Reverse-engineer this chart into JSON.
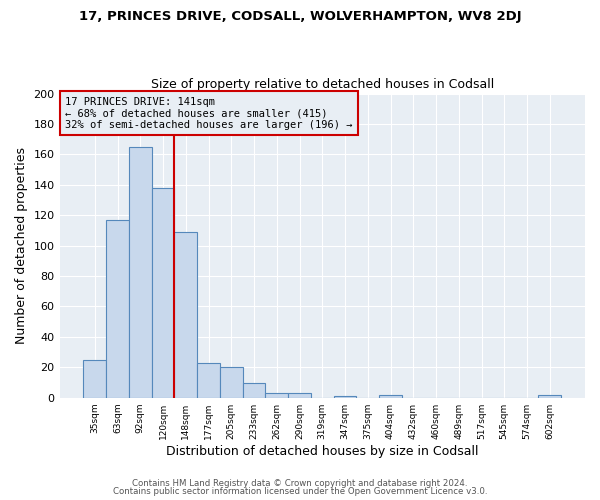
{
  "title1": "17, PRINCES DRIVE, CODSALL, WOLVERHAMPTON, WV8 2DJ",
  "title2": "Size of property relative to detached houses in Codsall",
  "xlabel": "Distribution of detached houses by size in Codsall",
  "ylabel": "Number of detached properties",
  "bin_labels": [
    "35sqm",
    "63sqm",
    "92sqm",
    "120sqm",
    "148sqm",
    "177sqm",
    "205sqm",
    "233sqm",
    "262sqm",
    "290sqm",
    "319sqm",
    "347sqm",
    "375sqm",
    "404sqm",
    "432sqm",
    "460sqm",
    "489sqm",
    "517sqm",
    "545sqm",
    "574sqm",
    "602sqm"
  ],
  "bar_heights": [
    25,
    117,
    165,
    138,
    109,
    23,
    20,
    10,
    3,
    3,
    0,
    1,
    0,
    2,
    0,
    0,
    0,
    0,
    0,
    0,
    2
  ],
  "bar_color": "#c8d8ec",
  "bar_edge_color": "#5588bb",
  "property_line_color": "#cc0000",
  "annotation_text": "17 PRINCES DRIVE: 141sqm\n← 68% of detached houses are smaller (415)\n32% of semi-detached houses are larger (196) →",
  "annotation_box_color": "#cc0000",
  "ylim": [
    0,
    200
  ],
  "yticks": [
    0,
    20,
    40,
    60,
    80,
    100,
    120,
    140,
    160,
    180,
    200
  ],
  "footer1": "Contains HM Land Registry data © Crown copyright and database right 2024.",
  "footer2": "Contains public sector information licensed under the Open Government Licence v3.0.",
  "plot_bg_color": "#e8eef4",
  "fig_bg_color": "#ffffff",
  "grid_color": "#ffffff"
}
